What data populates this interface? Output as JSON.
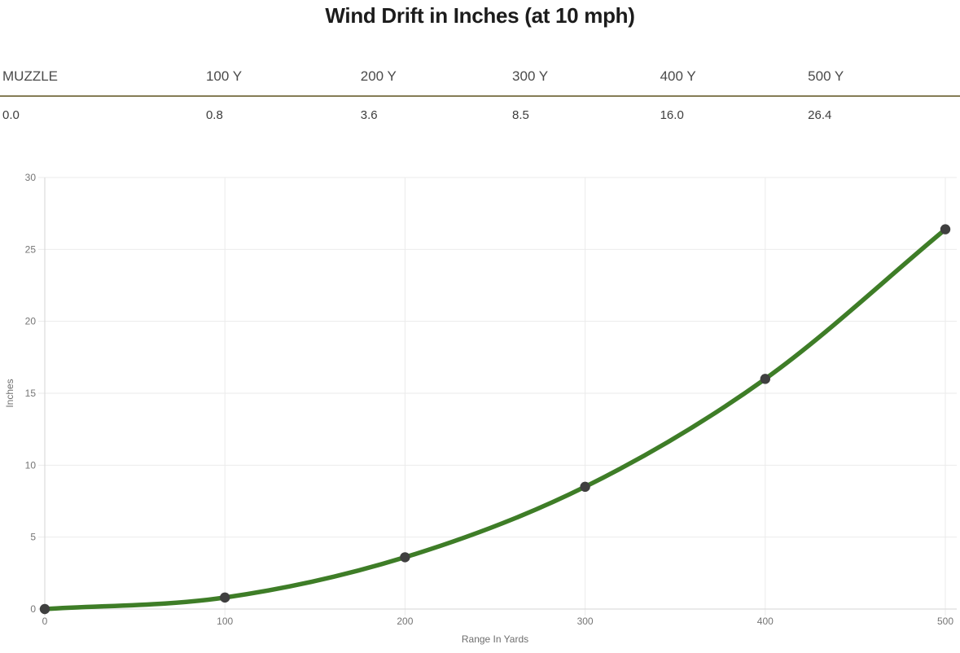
{
  "title": "Wind Drift in Inches (at 10 mph)",
  "table": {
    "headers": [
      "MUZZLE",
      "100 Y",
      "200 Y",
      "300 Y",
      "400 Y",
      "500 Y"
    ],
    "values": [
      "0.0",
      "0.8",
      "3.6",
      "8.5",
      "16.0",
      "26.4"
    ]
  },
  "chart_data": {
    "type": "line",
    "title": "Wind Drift in Inches (at 10 mph)",
    "x": [
      0,
      100,
      200,
      300,
      400,
      500
    ],
    "series": [
      {
        "name": "Wind Drift",
        "values": [
          0.0,
          0.8,
          3.6,
          8.5,
          16.0,
          26.4
        ]
      }
    ],
    "xlabel": "Range In Yards",
    "ylabel": "Inches",
    "xlim": [
      0,
      500
    ],
    "ylim": [
      0,
      30
    ],
    "x_ticks": [
      0,
      100,
      200,
      300,
      400,
      500
    ],
    "y_ticks": [
      0,
      5,
      10,
      15,
      20,
      25,
      30
    ],
    "grid": true,
    "legend": "none",
    "line_color": "#3e7d27",
    "point_color": "#3f3f3f",
    "gridline_color": "#ebebeb",
    "axisline_color": "#d6d6d6",
    "tick_label_color": "#757575"
  },
  "colors": {
    "divider": "#857c55",
    "title_text": "#1c1c1c",
    "header_text": "#4a4a4a",
    "value_text": "#3d3d3d"
  }
}
